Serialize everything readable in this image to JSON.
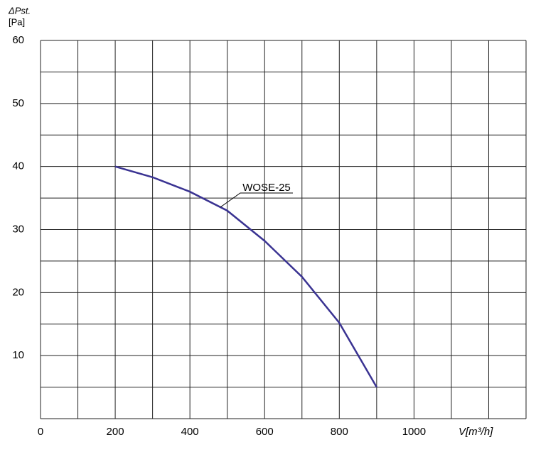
{
  "chart_data": {
    "type": "line",
    "ylabel": [
      "ΔPst.",
      "[Pa]"
    ],
    "xlabel": "V[m³/h]",
    "x": [
      200,
      300,
      400,
      500,
      600,
      700,
      800,
      900
    ],
    "series": [
      {
        "name": "WOSE-25",
        "color": "#3a3392",
        "values": [
          40,
          38.3,
          36,
          33,
          28.2,
          22.5,
          15.2,
          5
        ]
      }
    ],
    "xlim": [
      0,
      1300
    ],
    "ylim": [
      0,
      60
    ],
    "xticks": [
      0,
      200,
      400,
      600,
      800,
      1000
    ],
    "yticks": [
      10,
      20,
      30,
      40,
      50,
      60
    ],
    "x_gridlines": [
      0,
      100,
      200,
      300,
      400,
      500,
      600,
      700,
      800,
      900,
      1000,
      1100,
      1200,
      1300
    ],
    "y_gridlines": [
      0,
      5,
      10,
      15,
      20,
      25,
      30,
      35,
      40,
      45,
      50,
      55,
      60
    ],
    "grid": true
  }
}
